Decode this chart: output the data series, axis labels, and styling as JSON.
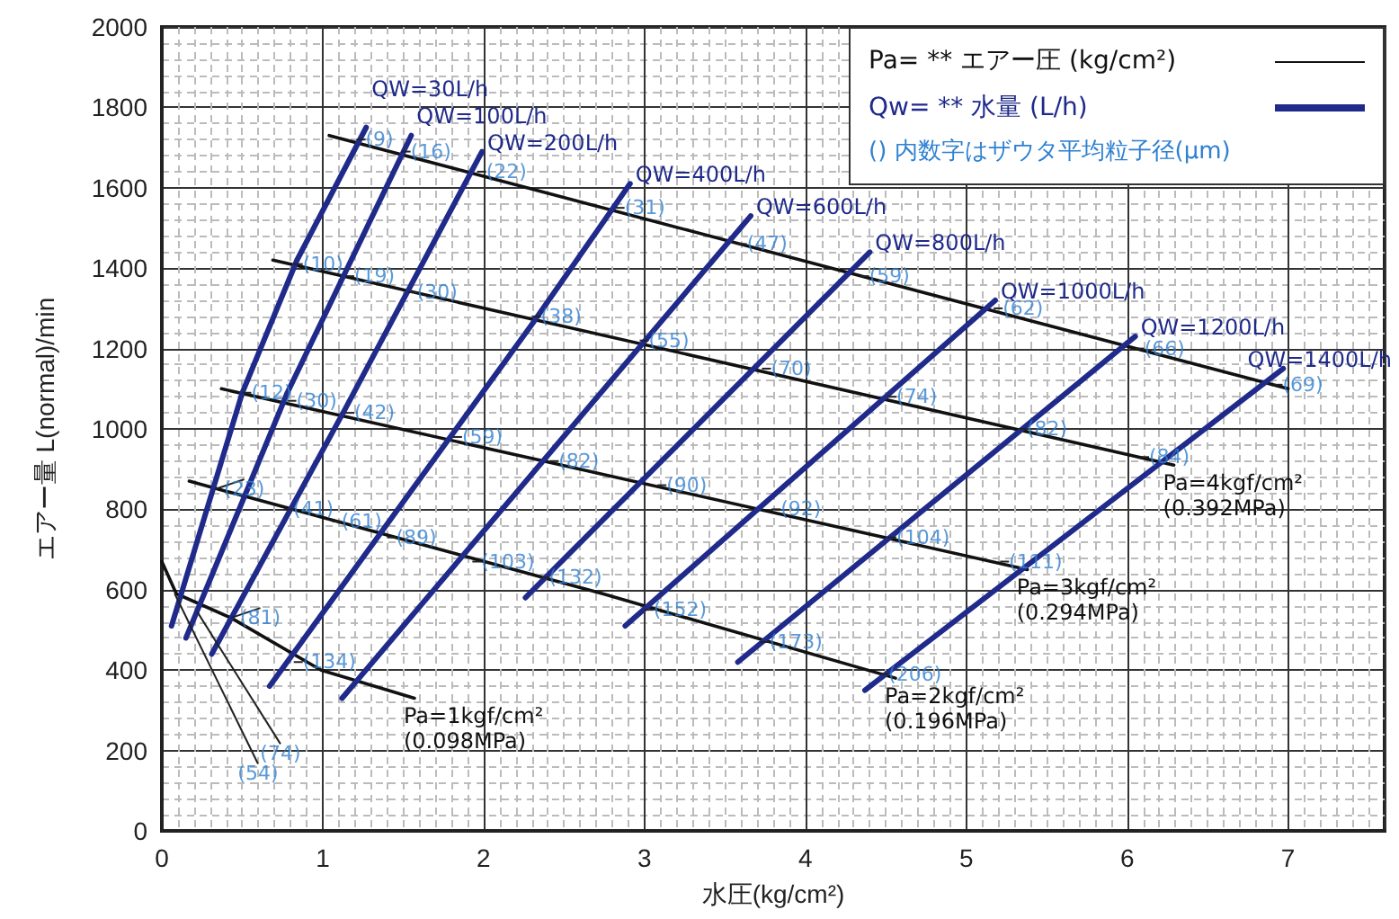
{
  "chart_data": {
    "type": "line",
    "xlabel": "水圧(kg/cm²)",
    "ylabel": "エアー量 L(normal)/min",
    "xlim": [
      0,
      7.6
    ],
    "xticks": [
      0,
      1,
      2,
      3,
      4,
      5,
      6,
      7
    ],
    "ylim": [
      0,
      2000
    ],
    "yticks": [
      0,
      200,
      400,
      600,
      800,
      1000,
      1200,
      1400,
      1600,
      1800,
      2000
    ],
    "grid": true,
    "legend": "top right",
    "marker": "none",
    "line_style": "solid",
    "series": [
      {
        "name": "QW=30L/h",
        "color": "#1f2a8a",
        "x": [
          0.06,
          0.5,
          0.84,
          1.27
        ],
        "values": [
          510,
          1090,
          1420,
          1750
        ]
      },
      {
        "name": "QW=100L/h",
        "color": "#1f2a8a",
        "x": [
          0.15,
          0.78,
          1.55
        ],
        "values": [
          480,
          1090,
          1730
        ]
      },
      {
        "name": "QW=200L/h",
        "color": "#1f2a8a",
        "x": [
          0.31,
          1.14,
          1.99
        ],
        "values": [
          440,
          1050,
          1690
        ]
      },
      {
        "name": "QW=400L/h",
        "color": "#1f2a8a",
        "x": [
          0.67,
          2.3,
          2.91
        ],
        "values": [
          360,
          1260,
          1610
        ]
      },
      {
        "name": "QW=600L/h",
        "color": "#1f2a8a",
        "x": [
          1.12,
          3.66
        ],
        "values": [
          330,
          1530
        ]
      },
      {
        "name": "QW=800L/h",
        "color": "#1f2a8a",
        "x": [
          2.26,
          4.4
        ],
        "values": [
          580,
          1440
        ]
      },
      {
        "name": "QW=1000L/h",
        "color": "#1f2a8a",
        "x": [
          2.88,
          5.18
        ],
        "values": [
          510,
          1320
        ]
      },
      {
        "name": "QW=1200L/h",
        "color": "#1f2a8a",
        "x": [
          3.58,
          6.05
        ],
        "values": [
          420,
          1230
        ]
      },
      {
        "name": "QW=1400L/h",
        "color": "#1f2a8a",
        "x": [
          4.37,
          6.97
        ],
        "values": [
          350,
          1150
        ]
      },
      {
        "name": "Pa=1kgf/cm²\n(0.098MPa)",
        "color": "#111111",
        "x": [
          0,
          0.09,
          0.43,
          0.99,
          1.57
        ],
        "values": [
          670,
          590,
          530,
          400,
          330
        ]
      },
      {
        "name": "Pa=2kgf/cm²\n(0.196MPa)",
        "color": "#111111",
        "x": [
          0.17,
          2.74,
          4.56
        ],
        "values": [
          870,
          590,
          380
        ]
      },
      {
        "name": "Pa=3kgf/cm²\n(0.294MPa)",
        "color": "#111111",
        "x": [
          0.37,
          5.38
        ],
        "values": [
          1100,
          650
        ]
      },
      {
        "name": "Pa=4kgf/cm²\n(0.392MPa)",
        "color": "#111111",
        "x": [
          0.69,
          6.29
        ],
        "values": [
          1420,
          910
        ]
      },
      {
        "color": "#111111",
        "x": [
          1.04,
          7.0
        ],
        "values": [
          1730,
          1100
        ]
      }
    ],
    "annotations": [
      "Pa= ** エアー圧 (kg/cm²)",
      "Qw= ** 水量 (L/h)",
      "() 内数字はザウタ平均粒子径(μm)",
      {
        "text": "(9)",
        "x": 1.21,
        "y": 1720
      },
      {
        "text": "(16)",
        "x": 1.49,
        "y": 1690
      },
      {
        "text": "(22)",
        "x": 1.96,
        "y": 1640
      },
      {
        "text": "(31)",
        "x": 2.82,
        "y": 1550
      },
      {
        "text": "(47)",
        "x": 3.58,
        "y": 1460
      },
      {
        "text": "(59)",
        "x": 4.34,
        "y": 1380
      },
      {
        "text": "(62)",
        "x": 5.17,
        "y": 1300
      },
      {
        "text": "(66)",
        "x": 6.05,
        "y": 1200
      },
      {
        "text": "(69)",
        "x": 6.91,
        "y": 1110
      },
      {
        "text": "(10)",
        "x": 0.82,
        "y": 1410
      },
      {
        "text": "(19)",
        "x": 1.14,
        "y": 1380
      },
      {
        "text": "(30)",
        "x": 1.53,
        "y": 1340
      },
      {
        "text": "(38)",
        "x": 2.3,
        "y": 1280
      },
      {
        "text": "(55)",
        "x": 2.97,
        "y": 1220
      },
      {
        "text": "(70)",
        "x": 3.73,
        "y": 1150
      },
      {
        "text": "(74)",
        "x": 4.51,
        "y": 1080
      },
      {
        "text": "(82)",
        "x": 5.32,
        "y": 1000
      },
      {
        "text": "(84)",
        "x": 6.08,
        "y": 930
      },
      {
        "text": "(12)",
        "x": 0.5,
        "y": 1090
      },
      {
        "text": "(30)",
        "x": 0.78,
        "y": 1070
      },
      {
        "text": "(42)",
        "x": 1.14,
        "y": 1040
      },
      {
        "text": "(59)",
        "x": 1.81,
        "y": 980
      },
      {
        "text": "(82)",
        "x": 2.41,
        "y": 920
      },
      {
        "text": "(90)",
        "x": 3.08,
        "y": 860
      },
      {
        "text": "(92)",
        "x": 3.79,
        "y": 800
      },
      {
        "text": "(104)",
        "x": 4.51,
        "y": 730
      },
      {
        "text": "(111)",
        "x": 5.21,
        "y": 670
      },
      {
        "text": "(23)",
        "x": 0.33,
        "y": 850
      },
      {
        "text": "(41)",
        "x": 0.76,
        "y": 800
      },
      {
        "text": "(61)",
        "x": 1.06,
        "y": 770
      },
      {
        "text": "(89)",
        "x": 1.4,
        "y": 730
      },
      {
        "text": "(103)",
        "x": 1.93,
        "y": 670
      },
      {
        "text": "(132)",
        "x": 2.35,
        "y": 630
      },
      {
        "text": "(152)",
        "x": 3.0,
        "y": 550
      },
      {
        "text": "(173)",
        "x": 3.72,
        "y": 470
      },
      {
        "text": "(206)",
        "x": 4.46,
        "y": 390
      },
      {
        "text": "(54)",
        "x": 0.08,
        "y": 590
      },
      {
        "text": "(74)",
        "x": 0.22,
        "y": 545
      },
      {
        "text": "(81)",
        "x": 0.43,
        "y": 530
      },
      {
        "text": "(134)",
        "x": 0.82,
        "y": 420
      }
    ]
  }
}
